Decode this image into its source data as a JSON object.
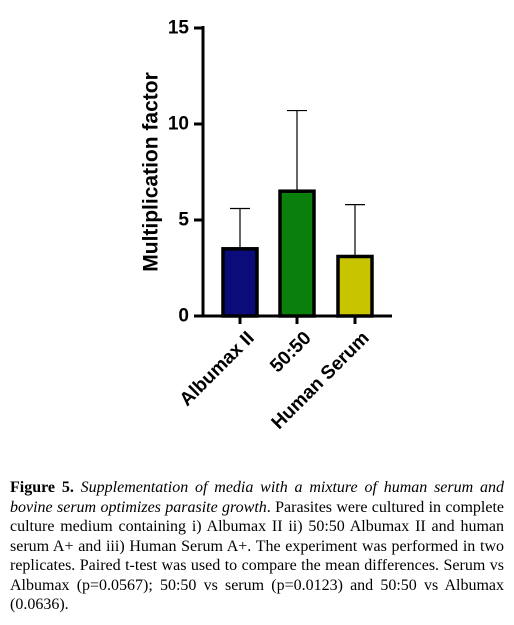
{
  "chart_data": {
    "type": "bar",
    "ylabel": "Multiplication factor",
    "xlabel": "",
    "ylim": [
      0,
      15
    ],
    "yticks": [
      0,
      5,
      10,
      15
    ],
    "categories": [
      "Albumax II",
      "50:50",
      "Human Serum"
    ],
    "values": [
      3.5,
      6.5,
      3.1
    ],
    "error_upper": [
      5.6,
      10.7,
      5.8
    ],
    "colors": [
      "#0b0b7a",
      "#0b7f0b",
      "#c9c400"
    ],
    "grid": false,
    "legend": "none"
  },
  "caption": {
    "label": "Figure 5.",
    "title": "Supplementation of media with a mixture of human serum and bovine serum optimizes parasite growth",
    "body": ". Parasites were cultured in complete culture medium containing i) Albumax II  ii) 50:50 Albumax II and human serum A+ and iii) Human Serum A+. The experiment was performed in two replicates. Paired t-test was used to compare the mean differences. Serum vs Albumax (p=0.0567); 50:50 vs serum (p=0.0123) and 50:50 vs Albumax (0.0636)."
  }
}
